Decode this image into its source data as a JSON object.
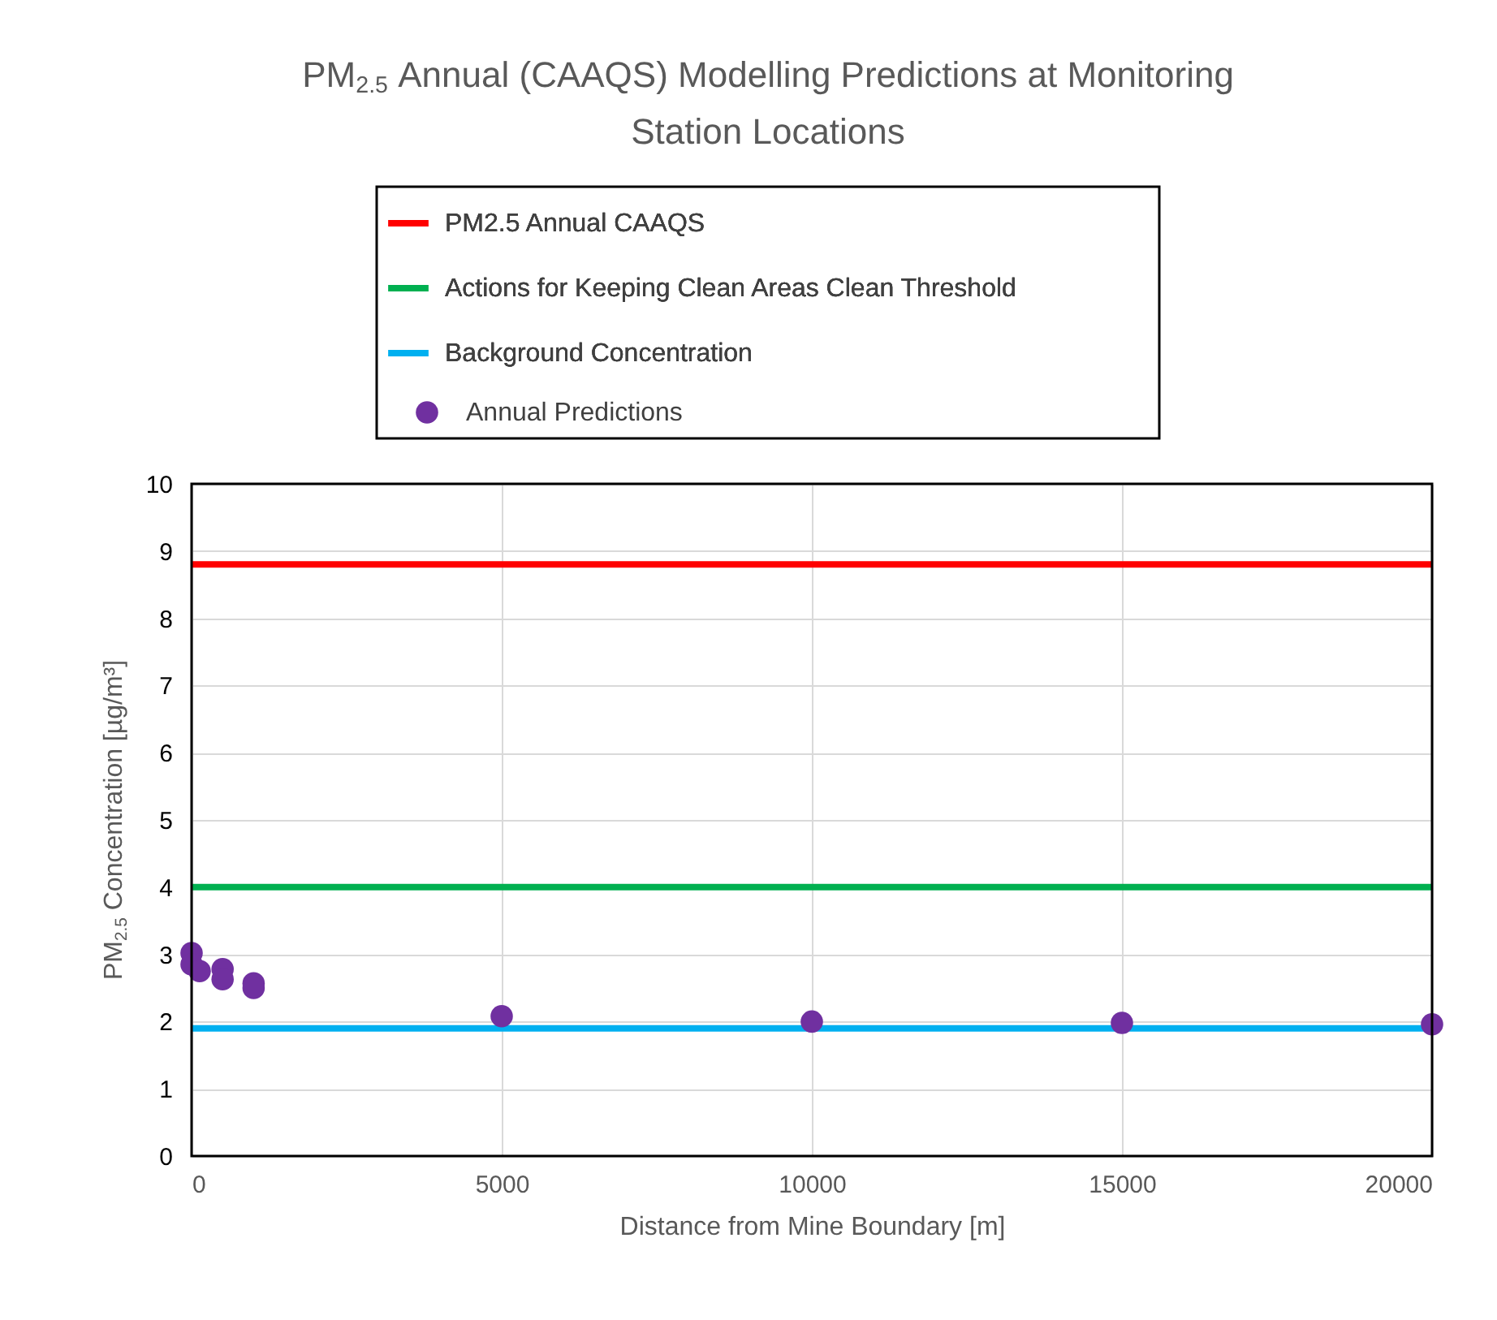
{
  "chart_data": {
    "type": "scatter",
    "title": "PM$_{2.5}$ Annual (CAAQS) Modelling Predictions at Monitoring Station Locations",
    "xlabel": "Distance from Mine Boundary [m]",
    "ylabel": "PM$_{2.5}$ Concentration [µg/m³]",
    "series": [
      {
        "name": "Annual Predictions",
        "color": "#7030a0",
        "x": [
          0,
          0,
          130,
          500,
          500,
          1000,
          1000,
          5000,
          10000,
          15000,
          20000
        ],
        "values": [
          3.02,
          2.85,
          2.75,
          2.78,
          2.63,
          2.57,
          2.5,
          2.08,
          2.0,
          1.98,
          1.96
        ]
      }
    ],
    "ref_lines": [
      {
        "axis": "y",
        "value": 8.8,
        "label": "PM2.5 Annual CAAQS",
        "color": "#ff0000"
      },
      {
        "axis": "y",
        "value": 4,
        "label": "Actions for Keeping Clean Areas Clean Threshold",
        "color": "#00b050"
      },
      {
        "axis": "y",
        "value": 1.9,
        "label": "Background Concentration",
        "color": "#00b0f0"
      }
    ],
    "xlim": [
      0,
      20000
    ],
    "xticks": [
      0,
      5000,
      10000,
      15000,
      20000
    ],
    "ylim": [
      0,
      10
    ],
    "yticks": [
      0,
      1,
      2,
      3,
      4,
      5,
      6,
      7,
      8,
      9,
      10
    ],
    "grid": true,
    "legend": "top",
    "marker": "circle"
  }
}
